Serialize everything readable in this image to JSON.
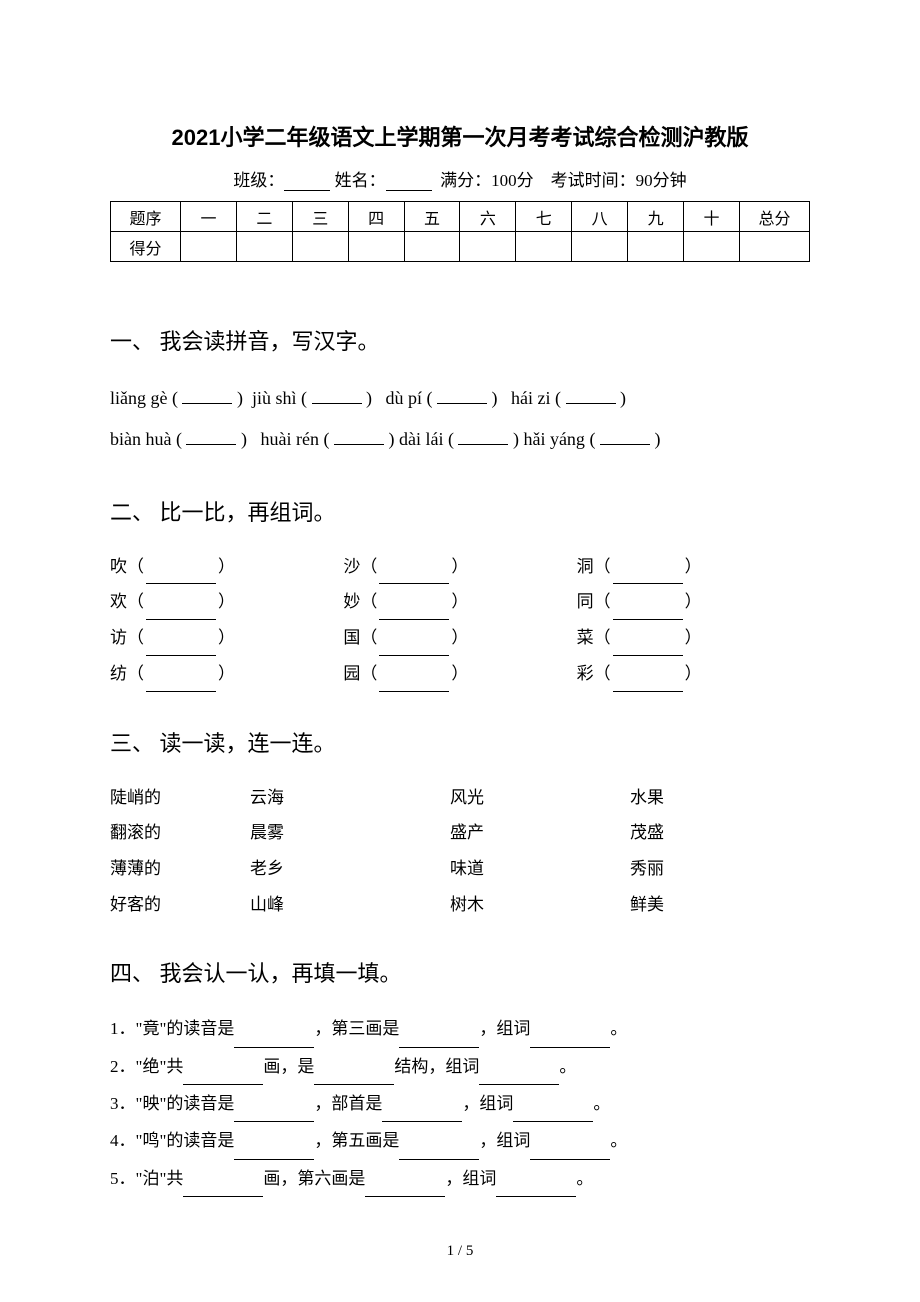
{
  "title": "2021小学二年级语文上学期第一次月考考试综合检测沪教版",
  "meta": {
    "class_label": "班级：",
    "name_label": "姓名：",
    "score_label": "满分：100分",
    "time_label": "考试时间：90分钟"
  },
  "score_table": {
    "row1": [
      "题序",
      "一",
      "二",
      "三",
      "四",
      "五",
      "六",
      "七",
      "八",
      "九",
      "十",
      "总分"
    ],
    "row2_label": "得分"
  },
  "section1": {
    "heading_num": "一、",
    "heading_txt": "我会读拼音，写汉字。",
    "line1": {
      "a": "liǎng gè",
      "b": "jiù shì",
      "c": "dù pí",
      "d": "hái zi"
    },
    "line2": {
      "a": "biàn huà",
      "b": "huài rén",
      "c": "dài lái",
      "d": "hǎi yáng"
    }
  },
  "section2": {
    "heading_num": "二、",
    "heading_txt": "比一比，再组词。",
    "rows": [
      {
        "a": "吹",
        "b": "沙",
        "c": "洞"
      },
      {
        "a": "欢",
        "b": "妙",
        "c": "同"
      },
      {
        "a": "访",
        "b": "国",
        "c": "菜"
      },
      {
        "a": "纺",
        "b": "园",
        "c": "彩"
      }
    ]
  },
  "section3": {
    "heading_num": "三、",
    "heading_txt": "读一读，连一连。",
    "rows": [
      {
        "c1": "陡峭的",
        "c2": "云海",
        "c3": "风光",
        "c4": "水果"
      },
      {
        "c1": "翻滚的",
        "c2": "晨雾",
        "c3": "盛产",
        "c4": "茂盛"
      },
      {
        "c1": "薄薄的",
        "c2": "老乡",
        "c3": "味道",
        "c4": "秀丽"
      },
      {
        "c1": "好客的",
        "c2": "山峰",
        "c3": "树木",
        "c4": "鲜美"
      }
    ]
  },
  "section4": {
    "heading_num": "四、",
    "heading_txt": "我会认一认，再填一填。",
    "items": [
      {
        "n": "1．",
        "a": "\"竟\"的读音是",
        "b": "，第三画是",
        "c": "，组词",
        "d": "。"
      },
      {
        "n": "2．",
        "a": "\"绝\"共",
        "b": "画，是",
        "c": "结构，组词",
        "d": "。"
      },
      {
        "n": "3．",
        "a": "\"映\"的读音是",
        "b": "，部首是",
        "c": "，组词",
        "d": "。"
      },
      {
        "n": "4．",
        "a": "\"鸣\"的读音是",
        "b": "，第五画是",
        "c": "，组词",
        "d": "。"
      },
      {
        "n": "5．",
        "a": "\"泊\"共",
        "b": "画，第六画是",
        "c": "，组词",
        "d": "。"
      }
    ]
  },
  "page_num": "1 / 5"
}
